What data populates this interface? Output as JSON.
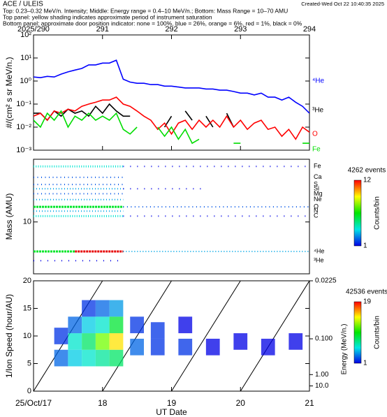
{
  "header": {
    "title": "ACE / ULEIS",
    "created": "Created-Wed Oct 22 10:40:35 2025",
    "lines": [
      "Top: 0.23–0.32 MeV/n. Intensity; Middle: Energy range = 0.4–10 MeV/n.; Bottom: Mass Range = 10–70 AMU",
      "Top panel:  yellow shading indicates approximate period of instrument saturation",
      "Bottom panel: approximate door position indicator:  none = 100%, blue = 26%, orange = 6%, red = 1%, black = 0%"
    ]
  },
  "chart_data": [
    {
      "type": "line",
      "ylabel": "#/(cm² s sr MeV/n.)",
      "xlim": [
        290,
        294
      ],
      "xticks": [
        {
          "value": 290,
          "label": "2025/290"
        },
        291,
        292,
        293,
        294
      ],
      "ylog": true,
      "ylim": [
        0.001,
        100
      ],
      "yticks": [
        {
          "value": 0.001,
          "label": "10⁻³"
        },
        {
          "value": 0.01,
          "label": "10⁻²"
        },
        {
          "value": 0.1,
          "label": "10⁻¹"
        },
        {
          "value": 1,
          "label": "10⁰"
        },
        {
          "value": 10,
          "label": "10¹"
        },
        {
          "value": 100,
          "label": "10²"
        }
      ],
      "x": [
        290.0,
        290.1,
        290.2,
        290.3,
        290.4,
        290.5,
        290.6,
        290.7,
        290.8,
        290.9,
        291.0,
        291.1,
        291.2,
        291.3,
        291.4,
        291.5,
        291.6,
        291.7,
        291.8,
        291.9,
        292.0,
        292.1,
        292.2,
        292.3,
        292.4,
        292.5,
        292.6,
        292.7,
        292.8,
        292.9,
        293.0,
        293.1,
        293.2,
        293.3,
        293.4,
        293.5,
        293.6,
        293.7,
        293.8,
        293.9,
        294.0
      ],
      "series": [
        {
          "name": "⁴He",
          "color": "#0000ff",
          "values": [
            1.5,
            1.4,
            1.6,
            1.5,
            2.0,
            2.5,
            3,
            3.5,
            5,
            5,
            6,
            6,
            8,
            1.2,
            0.9,
            0.8,
            0.8,
            0.7,
            0.7,
            0.6,
            0.6,
            0.55,
            0.5,
            0.5,
            0.5,
            0.45,
            0.45,
            0.4,
            0.4,
            0.35,
            0.3,
            0.3,
            0.25,
            0.3,
            0.2,
            0.2,
            0.15,
            0.2,
            0.12,
            0.08,
            0.04
          ]
        },
        {
          "name": "³He",
          "color": "#000000",
          "values": [
            0.04,
            0.04,
            0.02,
            0.05,
            0.03,
            0.06,
            0.04,
            0.05,
            0.03,
            0.08,
            0.04,
            0.1,
            0.05,
            0.03,
            0.03,
            null,
            null,
            null,
            null,
            0.01,
            0.03,
            null,
            0.05,
            0.02,
            null,
            0.03,
            0.01,
            null,
            0.04,
            0.01,
            null,
            null,
            null,
            null,
            null,
            null,
            null,
            null,
            null,
            null,
            null
          ]
        },
        {
          "name": "O",
          "color": "#ff0000",
          "values": [
            0.03,
            0.04,
            0.02,
            0.05,
            0.04,
            0.06,
            0.05,
            0.08,
            0.1,
            0.12,
            0.15,
            0.15,
            0.2,
            0.1,
            0.08,
            0.05,
            0.03,
            0.02,
            0.008,
            0.015,
            0.005,
            0.015,
            0.02,
            0.008,
            0.02,
            0.01,
            0.02,
            0.01,
            0.03,
            0.01,
            0.02,
            0.008,
            0.015,
            0.02,
            0.008,
            0.01,
            0.004,
            0.008,
            0.003,
            0.01,
            0.006
          ]
        },
        {
          "name": "Fe",
          "color": "#00dd00",
          "values": [
            0.02,
            0.01,
            0.04,
            0.02,
            0.05,
            0.01,
            0.03,
            0.02,
            0.04,
            0.02,
            0.03,
            0.02,
            0.04,
            0.008,
            0.005,
            0.01,
            null,
            null,
            0.01,
            0.004,
            0.01,
            0.003,
            0.008,
            0.002,
            0.003,
            null,
            null,
            null,
            null,
            0.002,
            0.002,
            null,
            null,
            null,
            null,
            null,
            null,
            null,
            null,
            0.002,
            0.002
          ]
        }
      ]
    },
    {
      "type": "tracks",
      "ylabel": "Mass (AMU)",
      "xlim": [
        17,
        21
      ],
      "ylog": true,
      "ylim": [
        2,
        70
      ],
      "yticks": [
        10
      ],
      "species": [
        "Fe",
        "Ca",
        "S",
        "Si",
        "Mg",
        "Ne",
        "O",
        "N",
        "C",
        "⁴He",
        "³He"
      ],
      "masses": [
        56,
        40,
        32,
        28,
        24,
        20,
        16,
        14,
        12,
        4,
        3
      ],
      "tracks": {
        "y": [
          56,
          56,
          40,
          32,
          28,
          28,
          24,
          20,
          16,
          16,
          14,
          12,
          12,
          4,
          4,
          4,
          3
        ],
        "x0": [
          17.0,
          18.3,
          17.0,
          17.0,
          17.0,
          18.3,
          17.0,
          17.0,
          17.0,
          18.3,
          17.0,
          17.0,
          18.3,
          17.0,
          17.6,
          18.3,
          17.0
        ],
        "x1": [
          18.3,
          21.0,
          18.3,
          18.3,
          18.3,
          19.5,
          18.3,
          18.3,
          18.3,
          21.0,
          18.3,
          18.3,
          21.0,
          17.6,
          18.3,
          21.0,
          18.3
        ],
        "counts": [
          4,
          1,
          2,
          2,
          3,
          1,
          2,
          3,
          6,
          2,
          3,
          4,
          1,
          6,
          12,
          3,
          1
        ]
      },
      "colorbar": {
        "title": "4262 events",
        "label": "Counts/bin",
        "lim": [
          1,
          12
        ],
        "ticks": [
          12,
          1
        ]
      }
    },
    {
      "type": "heatmap",
      "xlabel": "UT Date",
      "ylabel": "1/Ion Speed (hour/AU)",
      "y2label": "Energy (MeV/n.)",
      "xlim": [
        17,
        21
      ],
      "xticks": [
        {
          "value": 17,
          "label": "25/Oct/17"
        },
        18,
        19,
        20,
        21
      ],
      "ylim": [
        0,
        20
      ],
      "yticks": [
        0,
        5,
        10,
        15,
        20
      ],
      "y2scale": "inverse-square",
      "y2lim": [
        null,
        0.0225
      ],
      "y2ticks": [
        0.0225,
        {
          "value": 0.1,
          "label": "0.100"
        },
        {
          "value": 1,
          "label": "1.00"
        },
        {
          "value": 10,
          "label": "10.0"
        }
      ],
      "cells": {
        "x": [
          17.4,
          17.4,
          17.6,
          17.6,
          17.6,
          17.8,
          17.8,
          17.8,
          17.8,
          18.0,
          18.0,
          18.0,
          18.0,
          18.2,
          18.2,
          18.2,
          18.2,
          18.5,
          18.5,
          18.8,
          18.8,
          19.2,
          19.2,
          19.6,
          20.0,
          20.4,
          20.8
        ],
        "y": [
          6,
          10,
          6,
          9,
          12,
          6,
          9,
          12,
          15,
          6,
          9,
          12,
          15,
          6,
          9,
          12,
          15,
          8,
          12,
          8,
          11,
          8,
          12,
          8,
          9,
          8,
          9
        ],
        "counts": [
          3,
          2,
          5,
          6,
          3,
          6,
          8,
          5,
          2,
          7,
          12,
          6,
          3,
          8,
          15,
          9,
          4,
          3,
          2,
          2,
          2,
          2,
          1,
          1,
          1,
          1,
          1
        ]
      },
      "colorbar": {
        "title": "42536 events",
        "label": "Counts/bin",
        "lim": [
          1,
          19
        ],
        "ticks": [
          19,
          1
        ]
      }
    }
  ]
}
